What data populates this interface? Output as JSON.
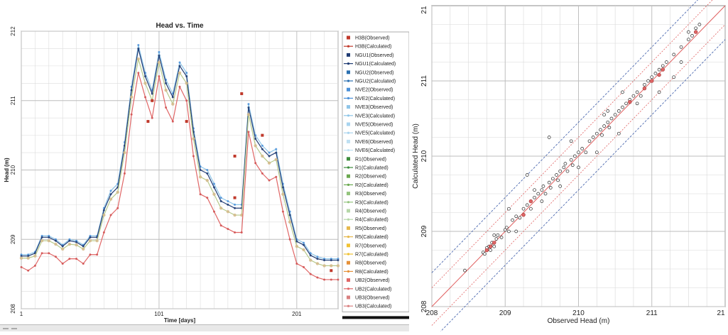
{
  "charts": [
    {
      "type": "line",
      "title": "Head vs. Time",
      "xlabel": "Time  [days]",
      "ylabel": "Head (m)",
      "xlim": [
        1,
        231
      ],
      "ylim": [
        208,
        212
      ],
      "xticks": [
        1,
        101,
        201
      ],
      "yticks": [
        208,
        209,
        210,
        211,
        212
      ],
      "grid": true,
      "legend_position": "right",
      "legend": [
        "H3B(Observed)",
        "H3B(Calculated)",
        "NGU1(Observed)",
        "NGU1(Calculated)",
        "NGU2(Observed)",
        "NGU2(Calculated)",
        "NVE2(Observed)",
        "NVE2(Calculated)",
        "NVE3(Observed)",
        "NVE3(Calculated)",
        "NVE5(Observed)",
        "NVE5(Calculated)",
        "NVE6(Observed)",
        "NVE6(Calculated)",
        "R1(Observed)",
        "R1(Calculated)",
        "R2(Observed)",
        "R2(Calculated)",
        "R3(Observed)",
        "R3(Calculated)",
        "R4(Observed)",
        "R4(Calculated)",
        "R5(Observed)",
        "R5(Calculated)",
        "R7(Observed)",
        "R7(Calculated)",
        "R8(Observed)",
        "R8(Calculated)",
        "UB2(Observed)",
        "UB2(Calculated)",
        "UB3(Observed)",
        "UB3(Calculated)"
      ],
      "series_colors": [
        "#c0392b",
        "#c0392b",
        "#1f3b73",
        "#1f3b73",
        "#2a6fb0",
        "#2a6fb0",
        "#4a90d9",
        "#4a90d9",
        "#8ec5e8",
        "#8ec5e8",
        "#a8d4ef",
        "#a8d4ef",
        "#bfe0f2",
        "#bfe0f2",
        "#3c8d3c",
        "#3c8d3c",
        "#6aa84f",
        "#6aa84f",
        "#93c47d",
        "#93c47d",
        "#b6d7a8",
        "#b6d7a8",
        "#e6b84c",
        "#e6b84c",
        "#f1c232",
        "#f1c232",
        "#e69138",
        "#e69138",
        "#e06666",
        "#e06666",
        "#d98080",
        "#d98080"
      ],
      "x": [
        1,
        6,
        11,
        16,
        21,
        26,
        31,
        36,
        41,
        46,
        51,
        56,
        61,
        66,
        71,
        76,
        81,
        86,
        91,
        96,
        101,
        106,
        111,
        116,
        121,
        126,
        131,
        136,
        141,
        146,
        151,
        156,
        161,
        166,
        171,
        176,
        181,
        186,
        191,
        196,
        201,
        206,
        211,
        216,
        221,
        226,
        231
      ],
      "series": [
        {
          "name": "NVE2(Calculated)",
          "values": [
            208.78,
            208.78,
            208.82,
            209.05,
            209.05,
            209.0,
            208.92,
            209.0,
            208.98,
            208.92,
            209.05,
            209.05,
            209.45,
            209.7,
            209.8,
            210.4,
            211.2,
            211.8,
            211.4,
            211.15,
            211.7,
            211.3,
            211.1,
            211.55,
            211.4,
            210.6,
            210.05,
            210.0,
            209.8,
            209.6,
            209.55,
            209.5,
            209.5,
            210.95,
            210.5,
            210.35,
            210.25,
            210.3,
            209.8,
            209.4,
            209.0,
            208.95,
            208.8,
            208.75,
            208.72,
            208.72,
            208.72
          ]
        },
        {
          "name": "NGU1(Calculated)",
          "values": [
            208.76,
            208.76,
            208.8,
            209.03,
            209.03,
            208.98,
            208.9,
            208.98,
            208.96,
            208.9,
            209.03,
            209.03,
            209.42,
            209.65,
            209.75,
            210.35,
            211.15,
            211.75,
            211.35,
            211.1,
            211.65,
            211.25,
            211.05,
            211.5,
            211.35,
            210.55,
            210.0,
            209.95,
            209.75,
            209.55,
            209.5,
            209.45,
            209.45,
            210.9,
            210.45,
            210.3,
            210.2,
            210.25,
            209.75,
            209.35,
            208.97,
            208.92,
            208.77,
            208.72,
            208.7,
            208.7,
            208.7
          ]
        },
        {
          "name": "R1(Calculated)",
          "values": [
            208.73,
            208.73,
            208.76,
            208.98,
            208.98,
            208.93,
            208.86,
            208.93,
            208.92,
            208.86,
            208.98,
            208.98,
            209.35,
            209.58,
            209.68,
            210.25,
            211.05,
            211.6,
            211.25,
            211.0,
            211.55,
            211.15,
            210.95,
            211.4,
            211.25,
            210.45,
            209.9,
            209.85,
            209.65,
            209.45,
            209.4,
            209.35,
            209.35,
            210.8,
            210.35,
            210.2,
            210.1,
            210.15,
            209.65,
            209.25,
            208.9,
            208.85,
            208.7,
            208.65,
            208.62,
            208.62,
            208.62
          ]
        },
        {
          "name": "UB2(Calculated)",
          "values": [
            208.6,
            208.55,
            208.62,
            208.8,
            208.8,
            208.75,
            208.65,
            208.72,
            208.72,
            208.65,
            208.78,
            208.78,
            209.1,
            209.35,
            209.45,
            209.95,
            210.8,
            211.4,
            211.05,
            210.75,
            211.35,
            210.9,
            210.7,
            211.2,
            211.0,
            210.2,
            209.65,
            209.6,
            209.4,
            209.2,
            209.15,
            209.1,
            209.1,
            210.55,
            210.1,
            209.95,
            209.85,
            209.9,
            209.4,
            209.0,
            208.65,
            208.6,
            208.5,
            208.45,
            208.42,
            208.42,
            208.42
          ]
        }
      ],
      "observed_markers": [
        {
          "x": 156,
          "y": 209.6
        },
        {
          "x": 156,
          "y": 210.2
        },
        {
          "x": 93,
          "y": 210.7
        },
        {
          "x": 96,
          "y": 211.0
        },
        {
          "x": 121,
          "y": 210.7
        },
        {
          "x": 161,
          "y": 211.1
        },
        {
          "x": 176,
          "y": 210.5
        },
        {
          "x": 226,
          "y": 208.55
        }
      ]
    },
    {
      "type": "scatter",
      "title": "",
      "xlabel": "Observed Head (m)",
      "ylabel": "Calculated Head (m)",
      "xlim": [
        208,
        212
      ],
      "ylim": [
        208,
        212
      ],
      "xticks": [
        208,
        209,
        210,
        211
      ],
      "yticks": [
        208,
        209,
        210,
        211
      ],
      "edge_tick_x": "21",
      "edge_tick_y": "21",
      "grid": true,
      "reference_line_color": "#e06060",
      "confidence_line_color": "#3a5aa8",
      "points": [
        {
          "x": 208.45,
          "y": 208.48
        },
        {
          "x": 208.7,
          "y": 208.72
        },
        {
          "x": 208.72,
          "y": 208.7
        },
        {
          "x": 208.75,
          "y": 208.78
        },
        {
          "x": 208.78,
          "y": 208.8
        },
        {
          "x": 208.8,
          "y": 208.75
        },
        {
          "x": 208.82,
          "y": 208.85
        },
        {
          "x": 208.85,
          "y": 208.8
        },
        {
          "x": 208.88,
          "y": 208.9
        },
        {
          "x": 208.9,
          "y": 208.95
        },
        {
          "x": 208.95,
          "y": 208.92
        },
        {
          "x": 209.0,
          "y": 209.02
        },
        {
          "x": 209.02,
          "y": 209.05
        },
        {
          "x": 209.05,
          "y": 209.0
        },
        {
          "x": 209.1,
          "y": 209.15
        },
        {
          "x": 209.15,
          "y": 209.2
        },
        {
          "x": 209.2,
          "y": 209.18
        },
        {
          "x": 209.25,
          "y": 209.3
        },
        {
          "x": 209.3,
          "y": 209.35
        },
        {
          "x": 209.35,
          "y": 209.3
        },
        {
          "x": 209.4,
          "y": 209.45
        },
        {
          "x": 209.45,
          "y": 209.5
        },
        {
          "x": 209.5,
          "y": 209.55
        },
        {
          "x": 209.52,
          "y": 209.6
        },
        {
          "x": 209.55,
          "y": 209.5
        },
        {
          "x": 209.6,
          "y": 209.65
        },
        {
          "x": 209.62,
          "y": 209.58
        },
        {
          "x": 209.65,
          "y": 209.7
        },
        {
          "x": 209.7,
          "y": 209.75
        },
        {
          "x": 209.72,
          "y": 209.68
        },
        {
          "x": 209.75,
          "y": 209.8
        },
        {
          "x": 209.8,
          "y": 209.85
        },
        {
          "x": 209.82,
          "y": 209.9
        },
        {
          "x": 209.85,
          "y": 209.8
        },
        {
          "x": 209.9,
          "y": 209.95
        },
        {
          "x": 209.92,
          "y": 209.88
        },
        {
          "x": 209.95,
          "y": 210.0
        },
        {
          "x": 210.0,
          "y": 210.05
        },
        {
          "x": 210.05,
          "y": 210.1
        },
        {
          "x": 210.1,
          "y": 210.05
        },
        {
          "x": 210.15,
          "y": 210.2
        },
        {
          "x": 210.2,
          "y": 210.25
        },
        {
          "x": 210.25,
          "y": 210.3
        },
        {
          "x": 210.3,
          "y": 210.35
        },
        {
          "x": 210.32,
          "y": 210.28
        },
        {
          "x": 210.35,
          "y": 210.4
        },
        {
          "x": 210.4,
          "y": 210.45
        },
        {
          "x": 210.42,
          "y": 210.38
        },
        {
          "x": 210.45,
          "y": 210.5
        },
        {
          "x": 210.5,
          "y": 210.55
        },
        {
          "x": 210.55,
          "y": 210.6
        },
        {
          "x": 210.6,
          "y": 210.65
        },
        {
          "x": 210.65,
          "y": 210.7
        },
        {
          "x": 210.7,
          "y": 210.75
        },
        {
          "x": 210.75,
          "y": 210.8
        },
        {
          "x": 210.8,
          "y": 210.85
        },
        {
          "x": 210.85,
          "y": 210.8
        },
        {
          "x": 210.9,
          "y": 210.95
        },
        {
          "x": 210.95,
          "y": 211.0
        },
        {
          "x": 211.0,
          "y": 211.05
        },
        {
          "x": 211.05,
          "y": 211.1
        },
        {
          "x": 211.1,
          "y": 211.15
        },
        {
          "x": 211.15,
          "y": 211.2
        },
        {
          "x": 211.2,
          "y": 211.25
        },
        {
          "x": 211.3,
          "y": 211.35
        },
        {
          "x": 211.4,
          "y": 211.45
        },
        {
          "x": 211.5,
          "y": 211.55
        },
        {
          "x": 211.55,
          "y": 211.6
        },
        {
          "x": 211.6,
          "y": 211.7
        },
        {
          "x": 211.65,
          "y": 211.75
        },
        {
          "x": 209.3,
          "y": 209.75
        },
        {
          "x": 209.6,
          "y": 210.25
        },
        {
          "x": 209.05,
          "y": 209.3
        },
        {
          "x": 210.4,
          "y": 210.6
        },
        {
          "x": 210.55,
          "y": 210.3
        },
        {
          "x": 211.1,
          "y": 210.85
        },
        {
          "x": 211.3,
          "y": 211.05
        },
        {
          "x": 209.9,
          "y": 210.2
        },
        {
          "x": 210.0,
          "y": 209.85
        },
        {
          "x": 209.4,
          "y": 209.55
        },
        {
          "x": 208.85,
          "y": 208.95
        },
        {
          "x": 209.75,
          "y": 209.6
        },
        {
          "x": 210.25,
          "y": 210.05
        },
        {
          "x": 210.6,
          "y": 210.85
        },
        {
          "x": 210.8,
          "y": 210.7
        },
        {
          "x": 211.4,
          "y": 211.25
        },
        {
          "x": 211.5,
          "y": 211.65
        },
        {
          "x": 209.15,
          "y": 209.0
        },
        {
          "x": 209.5,
          "y": 209.4
        },
        {
          "x": 210.35,
          "y": 210.55
        }
      ],
      "highlight_points": [
        {
          "x": 208.75,
          "y": 208.75
        },
        {
          "x": 208.8,
          "y": 208.8
        },
        {
          "x": 208.85,
          "y": 208.85
        },
        {
          "x": 209.25,
          "y": 209.22
        },
        {
          "x": 209.35,
          "y": 209.4
        },
        {
          "x": 210.7,
          "y": 210.72
        },
        {
          "x": 210.9,
          "y": 210.9
        },
        {
          "x": 211.0,
          "y": 211.0
        },
        {
          "x": 211.1,
          "y": 211.08
        },
        {
          "x": 211.15,
          "y": 211.15
        },
        {
          "x": 211.6,
          "y": 211.65
        }
      ]
    }
  ]
}
